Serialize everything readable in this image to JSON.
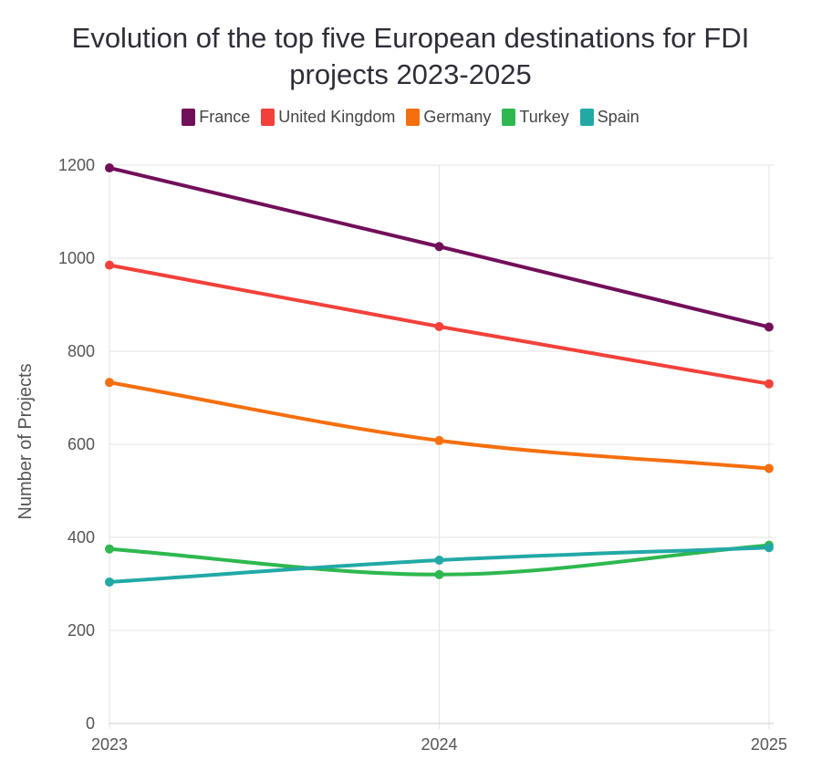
{
  "chart_data": {
    "type": "line",
    "title_line1": "Evolution of the top five European destinations for FDI",
    "title_line2": "projects 2023-2025",
    "xlabel": "",
    "ylabel": "Number of Projects",
    "x": [
      "2023",
      "2024",
      "2025"
    ],
    "ylim": [
      0,
      1200
    ],
    "yticks": [
      0,
      200,
      400,
      600,
      800,
      1000,
      1200
    ],
    "grid": true,
    "legend_position": "top",
    "series": [
      {
        "name": "France",
        "color": "#720f5a",
        "values": [
          1194,
          1025,
          852
        ]
      },
      {
        "name": "United Kingdom",
        "color": "#f2413a",
        "values": [
          985,
          853,
          730
        ]
      },
      {
        "name": "Germany",
        "color": "#f56f0e",
        "values": [
          733,
          608,
          548
        ]
      },
      {
        "name": "Turkey",
        "color": "#2eb84f",
        "values": [
          375,
          320,
          383
        ]
      },
      {
        "name": "Spain",
        "color": "#22a9a6",
        "values": [
          304,
          351,
          378
        ]
      }
    ]
  }
}
